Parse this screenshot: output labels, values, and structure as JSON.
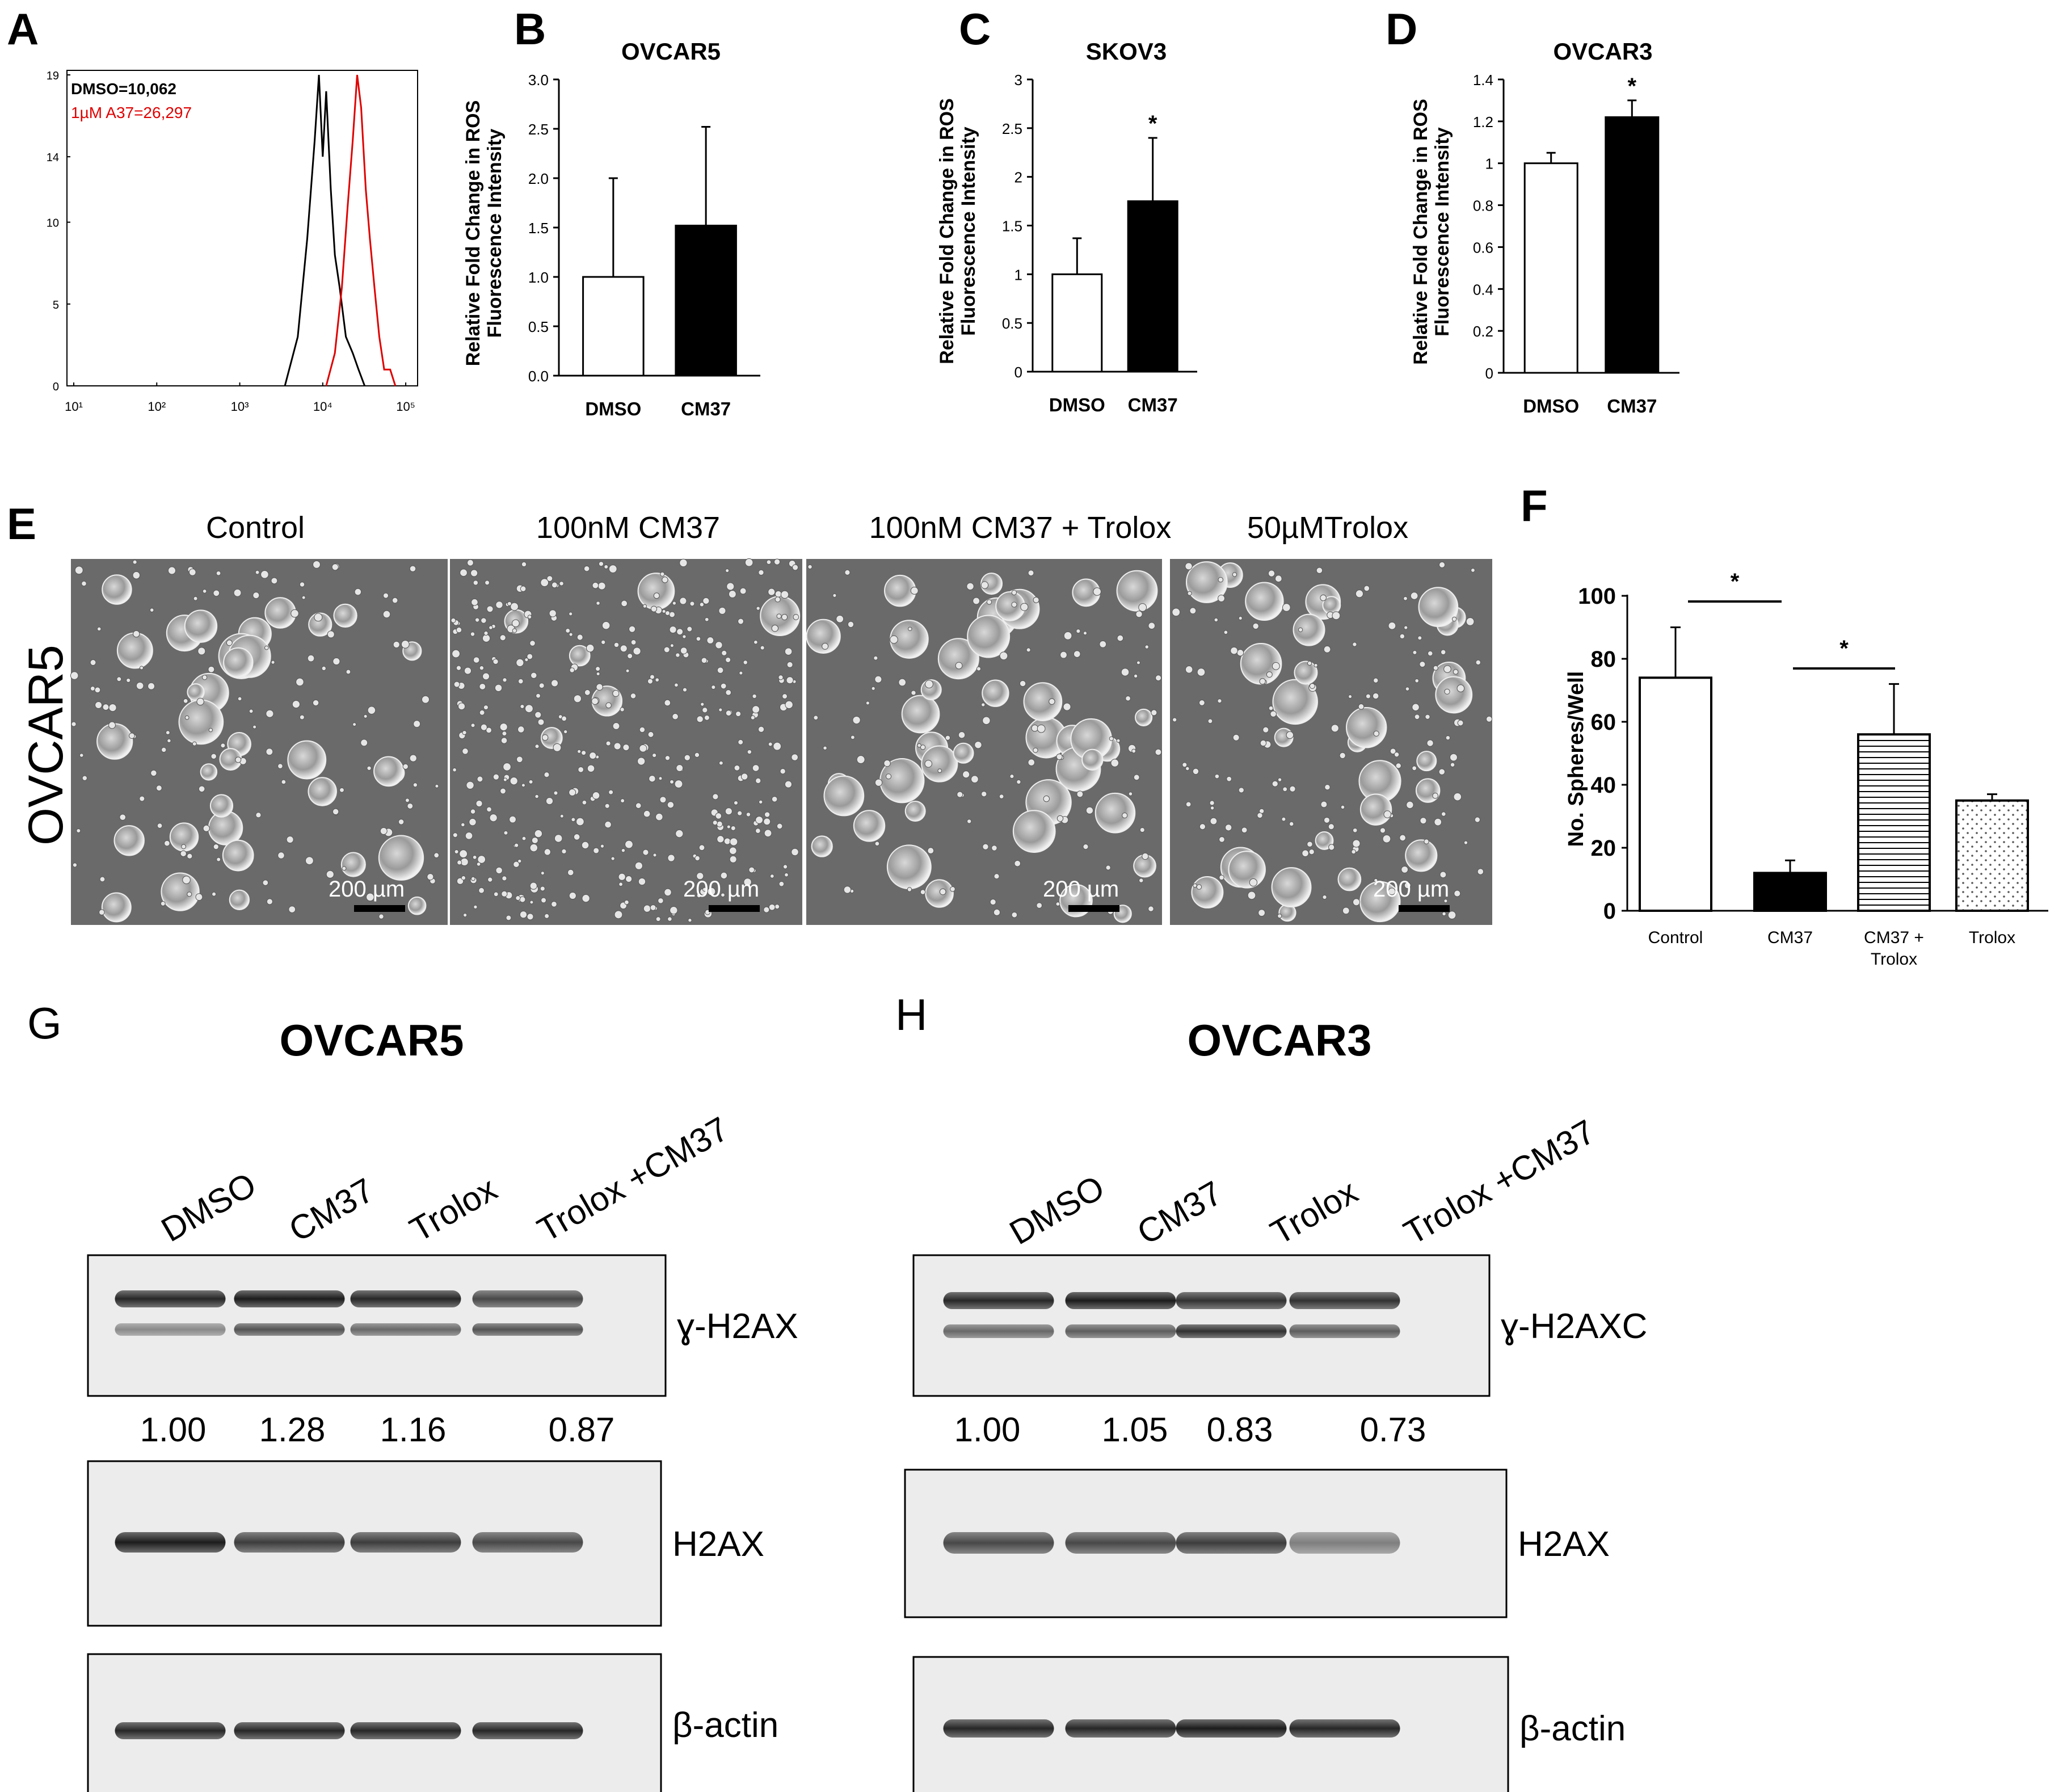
{
  "panels": {
    "A": "A",
    "B": "B",
    "C": "C",
    "D": "D",
    "E": "E",
    "F": "F",
    "G": "G",
    "H": "H"
  },
  "flow": {
    "legend_dmso": "DMSO=10,062",
    "legend_a37": "1µM A37=26,297",
    "yticks": [
      "0",
      "5",
      "10",
      "14",
      "19"
    ],
    "xticks": [
      "10¹",
      "10²",
      "10³",
      "10⁴",
      "10⁵"
    ],
    "color_dmso": "#000000",
    "color_a37": "#e00000"
  },
  "bars_ylabel_1": "Relative Fold Change in ROS",
  "bars_ylabel_2": "Fluorescence Intensity",
  "image_panel": {
    "side_label": "OVCAR5",
    "titles": [
      "Control",
      "100nM CM37",
      "100nM CM37 + Trolox",
      "50µMTrolox"
    ],
    "scale_label": "200 µm"
  },
  "blots": {
    "left": {
      "title": "OVCAR5",
      "lanes": [
        "DMSO",
        "CM37",
        "Trolox",
        "Trolox +CM37"
      ],
      "quant": [
        "1.00",
        "1.28",
        "1.16",
        "0.87"
      ],
      "labels": [
        "ɣ-H2AX",
        "H2AX",
        "β-actin"
      ]
    },
    "right": {
      "title": "OVCAR3",
      "lanes": [
        "DMSO",
        "CM37",
        "Trolox",
        "Trolox +CM37"
      ],
      "quant": [
        "1.00",
        "1.05",
        "0.83",
        "0.73"
      ],
      "labels": [
        "ɣ-H2AXC",
        "H2AX",
        "β-actin"
      ]
    }
  },
  "chart_data": [
    {
      "panel": "A",
      "type": "line",
      "xscale": "log",
      "xlim": [
        10,
        100000
      ],
      "ylim": [
        0,
        19
      ],
      "series": [
        {
          "name": "DMSO=10,062",
          "color": "#000000",
          "x": [
            3500,
            5000,
            6500,
            8000,
            9000,
            10000,
            11000,
            12500,
            14000,
            16000,
            19000,
            23000,
            27000,
            32000
          ],
          "y": [
            0,
            3,
            9,
            15,
            19,
            14,
            18,
            12,
            8,
            6,
            3,
            2,
            1,
            0
          ]
        },
        {
          "name": "1µM A37=26,297",
          "color": "#e00000",
          "x": [
            11000,
            14000,
            17000,
            20000,
            23000,
            26000,
            29000,
            33000,
            37000,
            42000,
            48000,
            55000,
            65000,
            75000
          ],
          "y": [
            0,
            2,
            6,
            11,
            15,
            19,
            17,
            12,
            9,
            6,
            3,
            1,
            1,
            0
          ]
        }
      ]
    },
    {
      "panel": "B",
      "type": "bar",
      "title": "OVCAR5",
      "ylabel": "Relative Fold Change in ROS Fluorescence Intensity",
      "categories": [
        "DMSO",
        "CM37"
      ],
      "values": [
        1.0,
        1.52
      ],
      "errors": [
        1.0,
        1.0
      ],
      "colors": [
        "#ffffff",
        "#000000"
      ],
      "ylim": [
        0,
        3.0
      ],
      "yticks": [
        "0.0",
        "0.5",
        "1.0",
        "1.5",
        "2.0",
        "2.5",
        "3.0"
      ],
      "significance": [
        "",
        ""
      ]
    },
    {
      "panel": "C",
      "type": "bar",
      "title": "SKOV3",
      "ylabel": "Relative Fold Change in ROS Fluorescence Intensity",
      "categories": [
        "DMSO",
        "CM37"
      ],
      "values": [
        1.0,
        1.75
      ],
      "errors": [
        0.37,
        0.65
      ],
      "colors": [
        "#ffffff",
        "#000000"
      ],
      "ylim": [
        0,
        3
      ],
      "yticks": [
        "0",
        "0.5",
        "1",
        "1.5",
        "2",
        "2.5",
        "3"
      ],
      "significance": [
        "",
        "*"
      ]
    },
    {
      "panel": "D",
      "type": "bar",
      "title": "OVCAR3",
      "ylabel": "Relative Fold Change in ROS Fluorescence Intensity",
      "categories": [
        "DMSO",
        "CM37"
      ],
      "values": [
        1.0,
        1.22
      ],
      "errors": [
        0.05,
        0.08
      ],
      "colors": [
        "#ffffff",
        "#000000"
      ],
      "ylim": [
        0,
        1.4
      ],
      "yticks": [
        "0",
        "0.2",
        "0.4",
        "0.6",
        "0.8",
        "1",
        "1.2",
        "1.4"
      ],
      "significance": [
        "",
        "*"
      ]
    },
    {
      "panel": "F",
      "type": "bar",
      "ylabel": "No. Spheres/Well",
      "categories": [
        "Control",
        "CM37",
        "CM37 + Trolox",
        "Trolox"
      ],
      "values": [
        74,
        12,
        56,
        35
      ],
      "errors": [
        16,
        4,
        16,
        2
      ],
      "fills": [
        "white",
        "black",
        "hlines",
        "dots"
      ],
      "ylim": [
        0,
        100
      ],
      "yticks": [
        "0",
        "20",
        "40",
        "60",
        "80",
        "100"
      ],
      "comparisons": [
        {
          "from": "Control",
          "to": "CM37",
          "label": "*"
        },
        {
          "from": "CM37",
          "to": "CM37 + Trolox",
          "label": "*"
        }
      ]
    }
  ]
}
